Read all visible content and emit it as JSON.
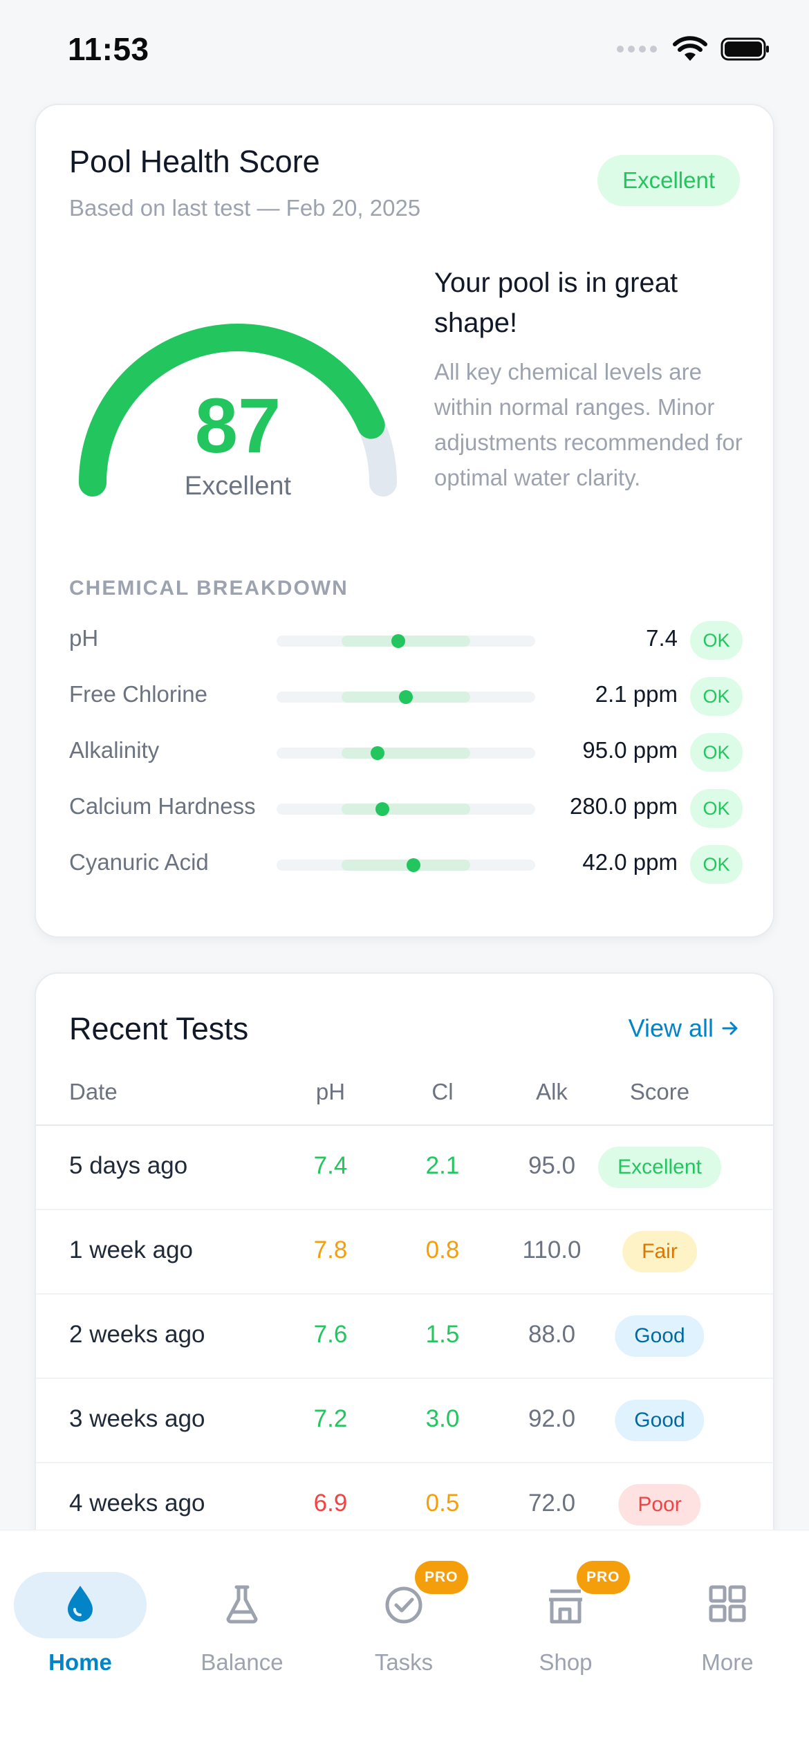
{
  "status": {
    "time": "11:53"
  },
  "health": {
    "title": "Pool Health Score",
    "subtitle": "Based on last test — Feb 20, 2025",
    "badge": "Excellent",
    "score": "87",
    "score_value": 87,
    "score_label": "Excellent",
    "headline": "Your pool is in great shape!",
    "description": "All key chemical levels are within normal ranges. Minor adjustments recommended for optimal water clarity.",
    "breakdown_heading": "CHEMICAL BREAKDOWN",
    "chemicals": [
      {
        "name": "pH",
        "value": "7.4",
        "status": "OK",
        "level": 0.47
      },
      {
        "name": "Free Chlorine",
        "value": "2.1 ppm",
        "status": "OK",
        "level": 0.5
      },
      {
        "name": "Alkalinity",
        "value": "95.0 ppm",
        "status": "OK",
        "level": 0.39
      },
      {
        "name": "Calcium Hardness",
        "value": "280.0 ppm",
        "status": "OK",
        "level": 0.41
      },
      {
        "name": "Cyanuric Acid",
        "value": "42.0 ppm",
        "status": "OK",
        "level": 0.53
      }
    ]
  },
  "tests": {
    "title": "Recent Tests",
    "view_all": "View all",
    "columns": {
      "date": "Date",
      "ph": "pH",
      "cl": "Cl",
      "alk": "Alk",
      "score": "Score"
    },
    "rows": [
      {
        "date": "5 days ago",
        "ph": "7.4",
        "cl": "2.1",
        "alk": "95.0",
        "score": "Excellent"
      },
      {
        "date": "1 week ago",
        "ph": "7.8",
        "cl": "0.8",
        "alk": "110.0",
        "score": "Fair"
      },
      {
        "date": "2 weeks ago",
        "ph": "7.6",
        "cl": "1.5",
        "alk": "88.0",
        "score": "Good"
      },
      {
        "date": "3 weeks ago",
        "ph": "7.2",
        "cl": "3.0",
        "alk": "92.0",
        "score": "Good"
      },
      {
        "date": "4 weeks ago",
        "ph": "6.9",
        "cl": "0.5",
        "alk": "72.0",
        "score": "Poor"
      }
    ]
  },
  "tabs": [
    {
      "label": "Home",
      "icon": "water-drop-icon",
      "active": true
    },
    {
      "label": "Balance",
      "icon": "flask-icon"
    },
    {
      "label": "Tasks",
      "icon": "check-circle-icon",
      "badge": "PRO"
    },
    {
      "label": "Shop",
      "icon": "store-icon",
      "badge": "PRO"
    },
    {
      "label": "More",
      "icon": "grid-icon"
    }
  ],
  "colors": {
    "green": "#22c55e",
    "orange": "#f59e0b",
    "red": "#ef4444",
    "blue": "#0284c7",
    "gray": "#6b7280"
  }
}
